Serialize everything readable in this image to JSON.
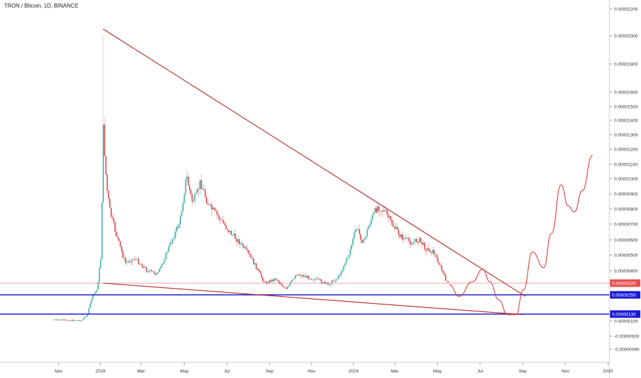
{
  "chart_data": {
    "type": "candlestick",
    "title": "TRON / Bitcoin, 1D, BINANCE",
    "x_tick_labels": [
      "Nov",
      "2018",
      "Mar",
      "May",
      "Jul",
      "Sep",
      "Nov",
      "2019",
      "Mar",
      "May",
      "Jul",
      "Sep",
      "Nov",
      "2020"
    ],
    "y_tick_labels": [
      "0.00002200",
      "0.00002000",
      "0.00001800",
      "0.00001600",
      "0.00001500",
      "0.00001400",
      "0.00001300",
      "0.00001200",
      "0.00001100",
      "0.00001000",
      "0.00000900",
      "0.00000800",
      "0.00000700",
      "0.00000600",
      "0.00000500",
      "0.00000400",
      "0.00000100",
      "-0.00000000",
      "-0.00000090"
    ],
    "price_tags": [
      {
        "label": "0.00000320",
        "color": "#e84f4f"
      },
      {
        "label": "0.00000250",
        "color": "#1a1ad6"
      },
      {
        "label": "0.00000130",
        "color": "#1a1ad6"
      }
    ],
    "price_series": [
      {
        "date": "2017-10-25",
        "close": 3e-07
      },
      {
        "date": "2017-11-15",
        "close": 2e-07
      },
      {
        "date": "2017-12-05",
        "close": 1.8e-07
      },
      {
        "date": "2017-12-13",
        "close": 1.2e-06
      },
      {
        "date": "2017-12-20",
        "close": 2.4e-06
      },
      {
        "date": "2017-12-27",
        "close": 2.8e-06
      },
      {
        "date": "2018-01-02",
        "close": 5e-06
      },
      {
        "date": "2018-01-05",
        "close": 1.35e-05
      },
      {
        "date": "2018-01-10",
        "close": 9.5e-06
      },
      {
        "date": "2018-01-15",
        "close": 7.8e-06
      },
      {
        "date": "2018-01-25",
        "close": 6.2e-06
      },
      {
        "date": "2018-02-06",
        "close": 4.5e-06
      },
      {
        "date": "2018-02-20",
        "close": 4.8e-06
      },
      {
        "date": "2018-03-10",
        "close": 4e-06
      },
      {
        "date": "2018-03-25",
        "close": 3.8e-06
      },
      {
        "date": "2018-04-10",
        "close": 5.6e-06
      },
      {
        "date": "2018-04-25",
        "close": 7.2e-06
      },
      {
        "date": "2018-05-04",
        "close": 1.02e-05
      },
      {
        "date": "2018-05-12",
        "close": 8.5e-06
      },
      {
        "date": "2018-05-18",
        "close": 8.8e-06
      },
      {
        "date": "2018-05-24",
        "close": 9.8e-06
      },
      {
        "date": "2018-06-05",
        "close": 8.2e-06
      },
      {
        "date": "2018-06-20",
        "close": 7.4e-06
      },
      {
        "date": "2018-07-05",
        "close": 6.5e-06
      },
      {
        "date": "2018-07-20",
        "close": 5.8e-06
      },
      {
        "date": "2018-08-05",
        "close": 4.8e-06
      },
      {
        "date": "2018-08-25",
        "close": 3.2e-06
      },
      {
        "date": "2018-09-10",
        "close": 3.5e-06
      },
      {
        "date": "2018-09-25",
        "close": 2.8e-06
      },
      {
        "date": "2018-10-10",
        "close": 3.8e-06
      },
      {
        "date": "2018-10-25",
        "close": 3.6e-06
      },
      {
        "date": "2018-11-10",
        "close": 3.4e-06
      },
      {
        "date": "2018-11-25",
        "close": 3.1e-06
      },
      {
        "date": "2018-12-10",
        "close": 3.6e-06
      },
      {
        "date": "2018-12-25",
        "close": 5e-06
      },
      {
        "date": "2019-01-05",
        "close": 6.8e-06
      },
      {
        "date": "2019-01-15",
        "close": 5.8e-06
      },
      {
        "date": "2019-01-25",
        "close": 7.2e-06
      },
      {
        "date": "2019-02-05",
        "close": 8.2e-06
      },
      {
        "date": "2019-02-15",
        "close": 7.8e-06
      },
      {
        "date": "2019-02-25",
        "close": 7e-06
      },
      {
        "date": "2019-03-10",
        "close": 6.2e-06
      },
      {
        "date": "2019-03-25",
        "close": 5.8e-06
      },
      {
        "date": "2019-04-05",
        "close": 6e-06
      },
      {
        "date": "2019-04-15",
        "close": 5.4e-06
      },
      {
        "date": "2019-04-25",
        "close": 5.2e-06
      },
      {
        "date": "2019-05-03",
        "close": 4.5e-06
      },
      {
        "date": "2019-05-12",
        "close": 3.5e-06
      },
      {
        "date": "2019-05-18",
        "close": 3.1e-06
      }
    ],
    "projection_path": [
      {
        "date": "2019-05-18",
        "price": 3.1e-06
      },
      {
        "date": "2019-06-01",
        "price": 2.4e-06
      },
      {
        "date": "2019-06-20",
        "price": 3.3e-06
      },
      {
        "date": "2019-07-05",
        "price": 4.1e-06
      },
      {
        "date": "2019-07-15",
        "price": 3.3e-06
      },
      {
        "date": "2019-07-28",
        "price": 2.2e-06
      },
      {
        "date": "2019-08-10",
        "price": 1.2e-06
      },
      {
        "date": "2019-08-22",
        "price": 1.2e-06
      },
      {
        "date": "2019-09-02",
        "price": 2.8e-06
      },
      {
        "date": "2019-09-15",
        "price": 5.2e-06
      },
      {
        "date": "2019-10-01",
        "price": 4.2e-06
      },
      {
        "date": "2019-10-12",
        "price": 6.4e-06
      },
      {
        "date": "2019-10-26",
        "price": 9.6e-06
      },
      {
        "date": "2019-11-05",
        "price": 8.2e-06
      },
      {
        "date": "2019-11-14",
        "price": 7.8e-06
      },
      {
        "date": "2019-11-25",
        "price": 9.2e-06
      },
      {
        "date": "2019-12-10",
        "price": 1.16e-05
      }
    ],
    "trendlines": [
      {
        "name": "descending resistance",
        "from": {
          "date": "2018-01-05",
          "price": 2.05e-05
        },
        "to": {
          "date": "2019-09-05",
          "price": 2.4e-06
        }
      },
      {
        "name": "descending support",
        "from": {
          "date": "2018-01-05",
          "price": 3.2e-06
        },
        "to": {
          "date": "2019-09-01",
          "price": 1.2e-06
        }
      }
    ],
    "horizontal_levels": [
      {
        "price": 3.2e-06,
        "color": "#e84f4f"
      },
      {
        "price": 2.5e-06,
        "color": "#1a1ad6"
      },
      {
        "price": 1.3e-06,
        "color": "#1a1ad6"
      }
    ],
    "colors": {
      "up": "#26a69a",
      "down": "#d32f2f",
      "trendline": "#b22222",
      "projection": "#e53935",
      "support": "#1a1ad6"
    }
  }
}
